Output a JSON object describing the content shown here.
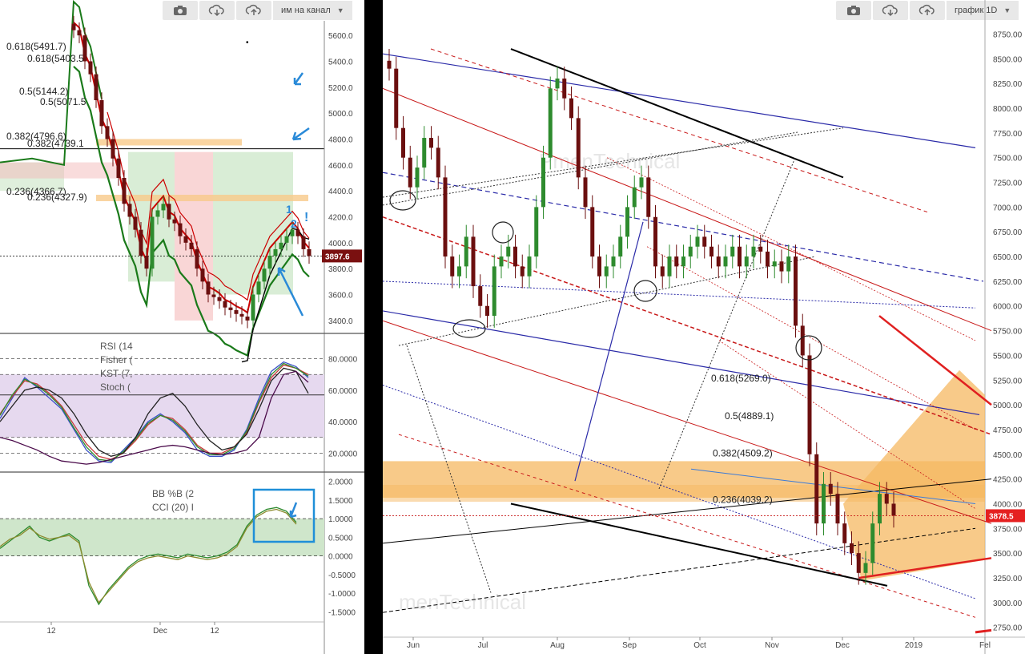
{
  "left": {
    "toolbar": {
      "select_label": "им на канал"
    },
    "price_axis": {
      "ticks": [
        "5600.0",
        "5400.0",
        "5200.0",
        "5000.0",
        "4800.0",
        "4600.0",
        "4400.0",
        "4200.0",
        "4000.0",
        "3800.0",
        "3600.0",
        "3400.0"
      ],
      "price_badge": "3897.6"
    },
    "fib_labels": [
      "0.618(5491.7)",
      "0.618(5403.5",
      "0.5(5144.2)",
      "0.5(5071.5",
      "0.382(4796.6)",
      "0.382(4739.1",
      "0.236(4366.7)",
      "0.236(4327.9)"
    ],
    "wave_marks": [
      "1",
      "2",
      "!"
    ],
    "osc": {
      "labels": [
        "RSI (14",
        "Fisher (",
        "KST (7,",
        "Stoch ("
      ],
      "ticks": [
        "80.0000",
        "60.0000",
        "40.0000",
        "20.0000"
      ]
    },
    "bb": {
      "labels": [
        "BB %B (2",
        "CCI (20) I"
      ],
      "ticks": [
        "2.0000",
        "1.5000",
        "1.0000",
        "0.5000",
        "0.0000",
        "-0.5000",
        "-1.0000",
        "-1.5000"
      ]
    },
    "x_labels": [
      "12",
      "Dec",
      "12"
    ]
  },
  "right": {
    "toolbar": {
      "select_label": "график 1D"
    },
    "price_axis": {
      "ticks": [
        "8750.00",
        "8500.00",
        "8250.00",
        "8000.00",
        "7750.00",
        "7500.00",
        "7250.00",
        "7000.00",
        "6750.00",
        "6500.00",
        "6250.00",
        "6000.00",
        "5750.00",
        "5500.00",
        "5250.00",
        "5000.00",
        "4750.00",
        "4500.00",
        "4250.00",
        "4000.00",
        "3750.00",
        "3500.00",
        "3250.00",
        "3000.00",
        "2750.00"
      ],
      "price_badge": "3878.5"
    },
    "fib_labels": [
      "0.618(5269.0)",
      "0.5(4889.1)",
      "0.382(4509.2)",
      "0.236(4039.2)"
    ],
    "x_labels": [
      "Jun",
      "Jul",
      "Aug",
      "Sep",
      "Oct",
      "Nov",
      "Dec",
      "2019",
      "Fel"
    ],
    "watermark": "PmenTechnical",
    "watermark2": "menTechnical"
  },
  "chart_data": [
    {
      "type": "candlestick",
      "description_scope": "left upper panel",
      "y_ticks": [
        5600,
        5400,
        5200,
        5000,
        4800,
        4600,
        4400,
        4200,
        4000,
        3800,
        3600,
        3400
      ],
      "ylim": [
        3300,
        5700
      ],
      "last_price": 3897.6,
      "close_path": [
        5640,
        5600,
        5400,
        5300,
        5100,
        4900,
        4800,
        4650,
        4500,
        4300,
        4200,
        4100,
        3900,
        3800,
        4200,
        4250,
        4300,
        4180,
        4150,
        4050,
        4000,
        3950,
        3800,
        3700,
        3600,
        3580,
        3550,
        3500,
        3480,
        3450,
        3430,
        3400,
        3600,
        3700,
        3800,
        3900,
        3950,
        4000,
        4050,
        4100,
        4050,
        3950,
        3897.6
      ],
      "fib_levels": [
        5491.7,
        5403.5,
        5144.2,
        5071.5,
        4796.6,
        4739.1,
        4366.7,
        4327.9
      ],
      "colors": {
        "up": "#2e8b2e",
        "down": "#6b0f0f",
        "band_red": "#cc0000",
        "band_green": "#1a7a1a"
      }
    },
    {
      "type": "line",
      "description_scope": "left oscillator panel",
      "y_ticks": [
        80,
        60,
        40,
        20
      ],
      "ylim": [
        10,
        90
      ],
      "series": [
        {
          "color": "#3a50c8",
          "values": [
            42,
            55,
            68,
            62,
            55,
            48,
            35,
            22,
            15,
            14,
            22,
            30,
            40,
            45,
            40,
            33,
            22,
            18,
            18,
            22,
            35,
            55,
            72,
            78,
            75,
            68
          ]
        },
        {
          "color": "#c83a3a",
          "values": [
            45,
            56,
            66,
            64,
            58,
            50,
            38,
            26,
            18,
            16,
            20,
            28,
            38,
            44,
            42,
            35,
            25,
            20,
            20,
            24,
            33,
            52,
            68,
            76,
            74,
            70
          ]
        },
        {
          "color": "#2e8b2e",
          "values": [
            44,
            57,
            67,
            63,
            57,
            49,
            36,
            24,
            16,
            15,
            21,
            29,
            39,
            44,
            41,
            34,
            24,
            19,
            19,
            23,
            34,
            53,
            70,
            77,
            74,
            69
          ]
        },
        {
          "color": "#222222",
          "values": [
            40,
            50,
            60,
            62,
            60,
            55,
            45,
            32,
            22,
            18,
            20,
            30,
            45,
            55,
            58,
            50,
            38,
            28,
            22,
            24,
            32,
            48,
            66,
            74,
            72,
            58
          ]
        },
        {
          "color": "#4a0a4a",
          "values": [
            30,
            28,
            25,
            22,
            18,
            15,
            14,
            13,
            14,
            16,
            18,
            20,
            22,
            24,
            25,
            24,
            22,
            20,
            19,
            20,
            22,
            30,
            55,
            70,
            72,
            65
          ]
        }
      ]
    },
    {
      "type": "line",
      "description_scope": "left BB %B / CCI panel",
      "y_ticks": [
        2.0,
        1.5,
        1.0,
        0.5,
        0.0,
        -0.5,
        -1.0,
        -1.5
      ],
      "ylim": [
        -1.6,
        2.1
      ],
      "series": [
        {
          "color": "#2e8b2e",
          "values": [
            0.2,
            0.4,
            0.6,
            0.8,
            0.5,
            0.4,
            0.5,
            0.6,
            0.4,
            -0.8,
            -1.3,
            -0.9,
            -0.6,
            -0.3,
            -0.1,
            0.0,
            0.05,
            0.0,
            -0.05,
            0.05,
            0.0,
            -0.05,
            0.0,
            0.1,
            0.3,
            0.8,
            1.1,
            1.25,
            1.3,
            1.2,
            0.9
          ]
        },
        {
          "color": "#8b8b2e",
          "values": [
            0.25,
            0.45,
            0.55,
            0.75,
            0.55,
            0.45,
            0.5,
            0.55,
            0.35,
            -0.7,
            -1.25,
            -0.95,
            -0.65,
            -0.35,
            -0.15,
            -0.05,
            0.0,
            -0.05,
            -0.1,
            0.0,
            -0.05,
            -0.1,
            -0.05,
            0.05,
            0.25,
            0.75,
            1.05,
            1.2,
            1.25,
            1.15,
            0.85
          ]
        }
      ]
    },
    {
      "type": "candlestick",
      "description_scope": "right main chart 1D",
      "x": [
        "Jun",
        "Jul",
        "Aug",
        "Sep",
        "Oct",
        "Nov",
        "Dec",
        "2019",
        "Fel"
      ],
      "y_ticks": [
        8750,
        8500,
        8250,
        8000,
        7750,
        7500,
        7250,
        7000,
        6750,
        6500,
        6250,
        6000,
        5750,
        5500,
        5250,
        5000,
        4750,
        4500,
        4250,
        4000,
        3750,
        3500,
        3250,
        3000,
        2750
      ],
      "ylim": [
        2650,
        8900
      ],
      "last_price": 3878.5,
      "close_path": [
        8400,
        7800,
        7500,
        7200,
        7400,
        7700,
        7600,
        7300,
        6500,
        6300,
        6400,
        6700,
        6200,
        6000,
        5900,
        6400,
        6500,
        6600,
        6400,
        6300,
        6500,
        7000,
        7500,
        8200,
        8300,
        8100,
        7900,
        7300,
        7000,
        6500,
        6300,
        6400,
        6500,
        6700,
        7000,
        7200,
        7300,
        6900,
        6400,
        6300,
        6500,
        6400,
        6500,
        6600,
        6700,
        6600,
        6500,
        6400,
        6500,
        6600,
        6400,
        6500,
        6600,
        6550,
        6400,
        6450,
        6350,
        6500,
        5800,
        5500,
        4500,
        3800,
        4200,
        4100,
        3800,
        3600,
        3500,
        3300,
        3400,
        3800,
        4100,
        4000,
        3878.5
      ],
      "fib_levels": [
        5269.0,
        4889.1,
        4509.2,
        4039.2
      ],
      "colors": {
        "up": "#2e8b2e",
        "down": "#6b0f0f"
      }
    }
  ]
}
